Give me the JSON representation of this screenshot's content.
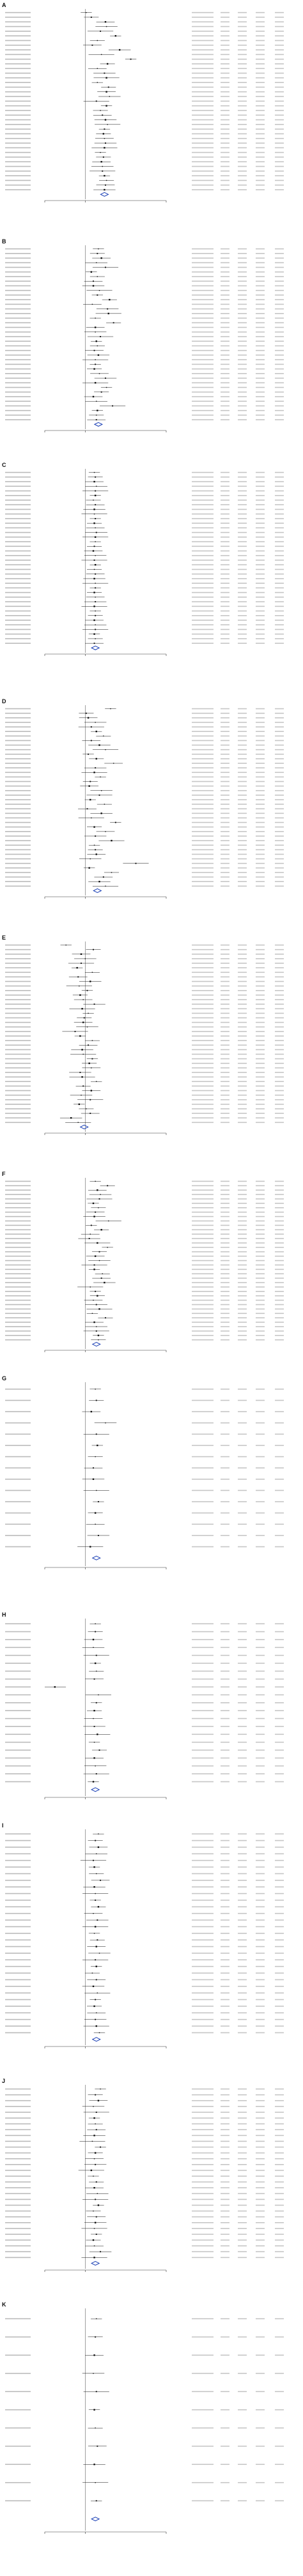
{
  "colors": {
    "marker": "#111111",
    "ci_line": "#111111",
    "diamond": "#1a3fb5",
    "axis": "#333333"
  },
  "chart_data": [
    {
      "type": "forest",
      "label": "A",
      "x": [
        0.1,
        0.6,
        2.0,
        2.1,
        1.5,
        3.0,
        1.2,
        0.7,
        3.4,
        1.6,
        4.5,
        2.2,
        1.2,
        1.9,
        2.1,
        1.2,
        2.3,
        2.1,
        2.4,
        1.1,
        2.1,
        1.5,
        1.7,
        2.0,
        2.2,
        1.9,
        1.8,
        1.9,
        2.0,
        1.9,
        1.5,
        1.8,
        1.6,
        1.7,
        1.7,
        1.9,
        2.1,
        2.0,
        1.9
      ],
      "pooled": 1.9,
      "xlim": [
        -4,
        8
      ],
      "null_x": 0
    },
    {
      "type": "forest",
      "label": "B",
      "x": [
        1.3,
        1.2,
        1.6,
        1.1,
        2.0,
        0.6,
        1.2,
        0.8,
        0.8,
        1.4,
        1.2,
        2.4,
        0.7,
        2.2,
        2.3,
        1.0,
        2.8,
        1.0,
        1.0,
        1.5,
        1.1,
        1.2,
        0.9,
        1.3,
        1.0,
        1.0,
        0.9,
        1.4,
        2.0,
        1.0,
        2.1,
        1.6,
        0.8,
        1.1,
        2.7,
        1.2,
        1.1,
        1.1
      ],
      "pooled": 1.3,
      "xlim": [
        -4,
        8
      ],
      "null_x": 0
    },
    {
      "type": "forest",
      "label": "C",
      "x": [
        0.9,
        1.0,
        0.9,
        1.1,
        1.0,
        1.0,
        0.8,
        1.0,
        0.9,
        0.9,
        1.0,
        0.9,
        1.0,
        1.1,
        1.0,
        1.0,
        0.9,
        0.8,
        1.0,
        0.9,
        1.0,
        0.9,
        1.0,
        0.9,
        1.0,
        1.0,
        0.9,
        1.0,
        1.0,
        0.9,
        1.0,
        1.0,
        0.9,
        1.0,
        1.0,
        0.9,
        1.0,
        0.9
      ],
      "pooled": 1.0,
      "xlim": [
        -4,
        8
      ],
      "null_x": 0
    },
    {
      "type": "forest",
      "label": "D",
      "x": [
        2.5,
        0.1,
        0.3,
        1.0,
        0.6,
        1.1,
        1.8,
        0.6,
        1.4,
        2.0,
        0.3,
        1.1,
        2.8,
        1.0,
        0.9,
        1.5,
        0.5,
        0.4,
        1.6,
        1.4,
        0.5,
        1.9,
        0.2,
        1.6,
        0.6,
        3.0,
        0.9,
        2.0,
        1.0,
        2.6,
        0.9,
        1.0,
        1.1,
        0.5,
        5.0,
        0.4,
        2.6,
        1.8,
        1.4,
        2.0
      ],
      "pooled": 1.2,
      "xlim": [
        -4,
        8
      ],
      "null_x": 0
    },
    {
      "type": "forest",
      "label": "E",
      "x": [
        -1.9,
        0.8,
        -0.4,
        0.0,
        -0.4,
        -0.8,
        0.7,
        -0.7,
        0.5,
        -0.6,
        0.2,
        -0.5,
        -0.2,
        0.9,
        -0.3,
        0.3,
        -0.1,
        -0.2,
        0.2,
        -1.0,
        -0.5,
        0.7,
        0.3,
        -0.3,
        -0.2,
        0.7,
        0.4,
        0.6,
        -0.5,
        -0.3,
        1.1,
        -0.2,
        0.6,
        -0.4,
        0.5,
        -0.6,
        0.1,
        0.5,
        -1.4,
        -0.7
      ],
      "pooled": -0.1,
      "xlim": [
        -4,
        8
      ],
      "null_x": 0
    },
    {
      "type": "forest",
      "label": "F",
      "x": [
        1.0,
        2.2,
        1.2,
        1.5,
        1.4,
        0.8,
        1.3,
        1.0,
        0.9,
        2.3,
        0.6,
        1.6,
        0.5,
        0.4,
        1.2,
        2.2,
        1.4,
        1.0,
        1.4,
        0.9,
        0.9,
        1.7,
        1.6,
        1.9,
        0.5,
        1.0,
        1.2,
        0.8,
        1.1,
        1.4,
        0.7,
        2.0,
        0.9,
        1.1,
        1.1,
        1.3,
        1.3
      ],
      "pooled": 1.1,
      "xlim": [
        -4,
        8
      ],
      "null_x": 0
    },
    {
      "type": "forest",
      "label": "G",
      "x": [
        1.0,
        1.1,
        0.6,
        2.0,
        1.1,
        1.2,
        1.0,
        0.8,
        0.8,
        1.1,
        1.3,
        1.0,
        1.0,
        1.3,
        0.5
      ],
      "pooled": 1.1,
      "xlim": [
        -4,
        8
      ],
      "null_x": 0
    },
    {
      "type": "forest",
      "label": "H",
      "x": [
        1.0,
        1.0,
        0.8,
        0.8,
        1.1,
        1.0,
        1.1,
        0.9,
        -3.0,
        1.3,
        1.1,
        0.9,
        0.8,
        0.9,
        1.2,
        0.9,
        1.4,
        0.9,
        1.0,
        1.1,
        0.8
      ],
      "pooled": 1.0,
      "xlim": [
        -4,
        8
      ],
      "null_x": 0
    },
    {
      "type": "forest",
      "label": "I",
      "x": [
        1.3,
        1.0,
        1.3,
        1.1,
        0.8,
        0.9,
        1.1,
        1.5,
        0.9,
        1.0,
        1.0,
        1.3,
        0.8,
        1.2,
        1.0,
        0.9,
        1.2,
        1.1,
        1.4,
        1.0,
        1.1,
        0.7,
        1.1,
        0.8,
        1.2,
        1.0,
        0.9,
        1.1,
        1.0,
        1.1,
        1.4
      ],
      "pooled": 1.1,
      "xlim": [
        -4,
        8
      ],
      "null_x": 0
    },
    {
      "type": "forest",
      "label": "J",
      "x": [
        1.5,
        1.0,
        1.3,
        0.8,
        1.1,
        0.9,
        1.0,
        1.1,
        0.9,
        0.7,
        1.5,
        1.0,
        0.9,
        1.0,
        0.6,
        0.8,
        1.1,
        0.9,
        1.2,
        1.0,
        1.3,
        0.8,
        1.1,
        1.0,
        0.9,
        1.1,
        0.8,
        0.9,
        1.5,
        0.9
      ],
      "pooled": 1.0,
      "xlim": [
        -4,
        8
      ],
      "null_x": 0
    },
    {
      "type": "forest",
      "label": "K",
      "x": [
        1.1,
        1.0,
        0.9,
        0.8,
        1.1,
        0.9,
        1.0,
        1.2,
        0.9,
        1.0,
        1.1
      ],
      "pooled": 1.0,
      "xlim": [
        -4,
        8
      ],
      "null_x": 0
    }
  ]
}
